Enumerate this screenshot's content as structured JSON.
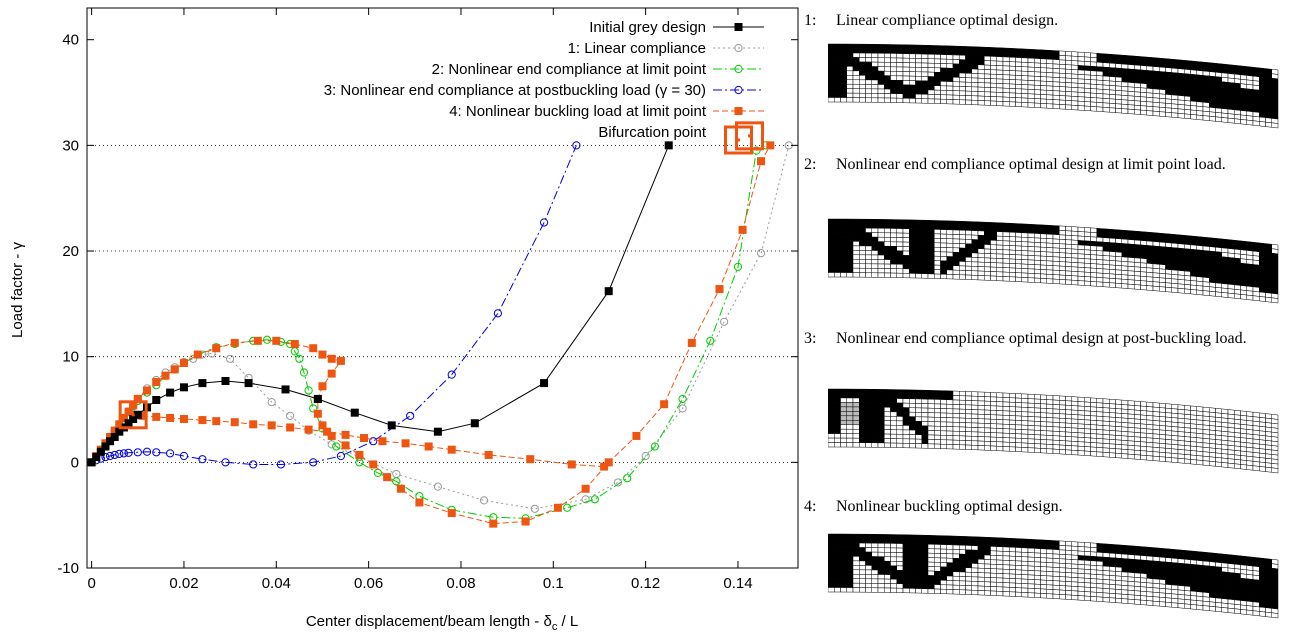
{
  "chart_data": {
    "type": "line",
    "xlabel_main": "Center displacement/beam length - δ",
    "xlabel_sub": "c",
    "xlabel_tail": " / L",
    "ylabel": "Load factor - γ",
    "xlim": [
      -0.001,
      0.153
    ],
    "ylim": [
      -10,
      43
    ],
    "xticks": [
      0,
      0.02,
      0.04,
      0.06,
      0.08,
      0.1,
      0.12,
      0.14
    ],
    "xtick_labels": [
      "0",
      "0.02",
      "0.04",
      "0.06",
      "0.08",
      "0.1",
      "0.12",
      "0.14"
    ],
    "yticks": [
      -10,
      0,
      10,
      20,
      30,
      40
    ],
    "ytick_labels": [
      "-10",
      "0",
      "10",
      "20",
      "30",
      "40"
    ],
    "grid_y": [
      0,
      10,
      20,
      30
    ],
    "legend_position": "top-right",
    "series": [
      {
        "name": "Initial grey design",
        "color": "#000000",
        "marker": "filled-square",
        "dash": "",
        "x": [
          0,
          0.001,
          0.002,
          0.003,
          0.004,
          0.005,
          0.006,
          0.007,
          0.008,
          0.009,
          0.01,
          0.012,
          0.014,
          0.017,
          0.02,
          0.024,
          0.029,
          0.034,
          0.042,
          0.049,
          0.057,
          0.065,
          0.075,
          0.083,
          0.098,
          0.112,
          0.125
        ],
        "y": [
          0,
          0.5,
          1.0,
          1.5,
          2.0,
          2.4,
          2.9,
          3.3,
          3.7,
          4.1,
          4.5,
          5.2,
          5.9,
          6.6,
          7.1,
          7.5,
          7.7,
          7.5,
          6.9,
          6.0,
          4.7,
          3.5,
          2.9,
          3.7,
          7.5,
          16.2,
          30.0
        ]
      },
      {
        "name": "1: Linear compliance",
        "color": "#999999",
        "marker": "open-circle",
        "dash": "2,3",
        "x": [
          0,
          0.001,
          0.002,
          0.003,
          0.004,
          0.005,
          0.006,
          0.007,
          0.008,
          0.009,
          0.01,
          0.012,
          0.014,
          0.016,
          0.018,
          0.02,
          0.022,
          0.024,
          0.026,
          0.03,
          0.034,
          0.039,
          0.043,
          0.047,
          0.052,
          0.058,
          0.066,
          0.075,
          0.085,
          0.096,
          0.107,
          0.114,
          0.12,
          0.128,
          0.137,
          0.145,
          0.151
        ],
        "y": [
          0,
          0.6,
          1.2,
          1.8,
          2.4,
          3.0,
          3.6,
          4.2,
          4.8,
          5.4,
          6.0,
          7.0,
          7.8,
          8.5,
          9.0,
          9.5,
          9.8,
          10.2,
          10.3,
          9.8,
          8.0,
          5.7,
          4.4,
          3.0,
          1.7,
          0.5,
          -1.1,
          -2.3,
          -3.6,
          -4.4,
          -3.5,
          -1.9,
          0.6,
          5.1,
          13.3,
          19.8,
          30.0
        ]
      },
      {
        "name": "2: Nonlinear end compliance at limit point",
        "color": "#00cc00",
        "marker": "open-circle",
        "dash": "9,3,2,3",
        "x": [
          0,
          0.001,
          0.002,
          0.003,
          0.004,
          0.005,
          0.006,
          0.007,
          0.008,
          0.009,
          0.01,
          0.012,
          0.014,
          0.016,
          0.018,
          0.02,
          0.023,
          0.027,
          0.031,
          0.035,
          0.038,
          0.041,
          0.043,
          0.044,
          0.045,
          0.046,
          0.047,
          0.048,
          0.05,
          0.053,
          0.058,
          0.062,
          0.066,
          0.071,
          0.078,
          0.087,
          0.094,
          0.103,
          0.109,
          0.116,
          0.122,
          0.128,
          0.134,
          0.14,
          0.144,
          0.146
        ],
        "y": [
          0,
          0.6,
          1.2,
          1.8,
          2.4,
          3.0,
          3.6,
          4.2,
          4.8,
          5.3,
          5.8,
          6.6,
          7.3,
          8.2,
          8.8,
          9.4,
          10.2,
          10.9,
          11.2,
          11.5,
          11.6,
          11.4,
          11.2,
          10.5,
          9.8,
          8.5,
          6.8,
          5.1,
          3.2,
          1.5,
          0.0,
          -1.0,
          -1.8,
          -3.2,
          -4.5,
          -5.2,
          -5.3,
          -4.3,
          -3.5,
          -1.5,
          1.5,
          6.0,
          11.5,
          18.5,
          29.5,
          30.0
        ]
      },
      {
        "name": "3: Nonlinear end compliance at postbuckling load (γ = 30)",
        "color": "#0000dd",
        "marker": "open-circle",
        "dash": "9,3,2,3",
        "x": [
          0,
          0.001,
          0.002,
          0.003,
          0.004,
          0.005,
          0.006,
          0.007,
          0.008,
          0.01,
          0.012,
          0.014,
          0.017,
          0.02,
          0.024,
          0.029,
          0.035,
          0.041,
          0.048,
          0.054,
          0.061,
          0.069,
          0.078,
          0.088,
          0.098,
          0.105
        ],
        "y": [
          0,
          0.2,
          0.35,
          0.5,
          0.6,
          0.7,
          0.8,
          0.85,
          0.9,
          0.95,
          1.0,
          0.95,
          0.85,
          0.6,
          0.3,
          0.0,
          -0.2,
          -0.2,
          0.0,
          0.6,
          2.0,
          4.4,
          8.3,
          14.1,
          22.7,
          30.0
        ]
      },
      {
        "name": "4: Nonlinear buckling load at limit point",
        "color": "#ee5511",
        "marker": "filled-square",
        "dash": "6,3",
        "x": [
          0,
          0.001,
          0.002,
          0.003,
          0.004,
          0.005,
          0.006,
          0.007,
          0.008,
          0.009,
          0.01,
          0.012,
          0.014,
          0.016,
          0.018,
          0.02,
          0.023,
          0.027,
          0.031,
          0.036,
          0.04,
          0.044,
          0.048,
          0.05,
          0.052,
          0.054,
          0.052,
          0.05,
          0.049,
          0.049,
          0.05,
          0.052,
          0.055,
          0.058,
          0.061,
          0.064,
          0.067,
          0.071,
          0.078,
          0.087,
          0.094,
          0.101,
          0.107,
          0.112,
          0.118,
          0.124,
          0.13,
          0.136,
          0.141,
          0.145,
          0.147
        ],
        "y": [
          0,
          0.6,
          1.2,
          1.8,
          2.4,
          3.0,
          3.6,
          4.2,
          4.8,
          5.4,
          6.0,
          6.8,
          7.6,
          8.2,
          8.8,
          9.4,
          10.2,
          10.8,
          11.3,
          11.5,
          11.5,
          11.2,
          10.8,
          10.2,
          9.8,
          9.6,
          8.4,
          7.2,
          6.0,
          4.6,
          3.5,
          2.5,
          1.6,
          0.7,
          -0.2,
          -1.4,
          -2.5,
          -3.8,
          -4.8,
          -5.8,
          -5.6,
          -4.3,
          -2.5,
          0.0,
          2.5,
          5.5,
          11.3,
          16.4,
          22.0,
          28.5,
          30.0
        ]
      },
      {
        "name": "",
        "color": "#ee5511",
        "marker": "filled-square",
        "dash": "6,3",
        "x": [
          0.009,
          0.011,
          0.014,
          0.017,
          0.02,
          0.024,
          0.027,
          0.031,
          0.035,
          0.039,
          0.043,
          0.047,
          0.051,
          0.055,
          0.059,
          0.063,
          0.068,
          0.073,
          0.078,
          0.086,
          0.095,
          0.104,
          0.111
        ],
        "y": [
          4.5,
          4.4,
          4.3,
          4.2,
          4.1,
          4.0,
          3.9,
          3.8,
          3.6,
          3.5,
          3.3,
          3.1,
          2.9,
          2.6,
          2.3,
          2.0,
          1.8,
          1.5,
          1.2,
          0.7,
          0.3,
          -0.2,
          -0.4
        ]
      }
    ],
    "bifurcation": {
      "name": "Bifurcation point",
      "color": "#ee5511",
      "points": [
        [
          0.009,
          4.5
        ],
        [
          0.1425,
          30.9
        ]
      ]
    }
  },
  "captions": [
    {
      "num": "1:",
      "text": "Linear compliance optimal design."
    },
    {
      "num": "2:",
      "text": "Nonlinear end compliance optimal design at limit point load."
    },
    {
      "num": "3:",
      "text": "Nonlinear end compliance optimal design at post-buckling load."
    },
    {
      "num": "4:",
      "text": "Nonlinear buckling optimal design."
    }
  ]
}
